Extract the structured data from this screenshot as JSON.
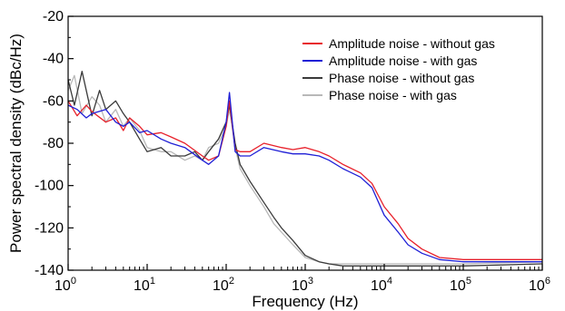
{
  "chart_data": {
    "type": "line",
    "xlabel": "Frequency (Hz)",
    "ylabel": "Power spectral density (dBc/Hz)",
    "x_scale": "log",
    "xlim": [
      1,
      1000000
    ],
    "ylim": [
      -140,
      -20
    ],
    "grid": false,
    "legend_position": "top-right",
    "x_ticks": [
      {
        "value": 1,
        "base": "10",
        "exp": "0"
      },
      {
        "value": 10,
        "base": "10",
        "exp": "1"
      },
      {
        "value": 100,
        "base": "10",
        "exp": "2"
      },
      {
        "value": 1000,
        "base": "10",
        "exp": "3"
      },
      {
        "value": 10000,
        "base": "10",
        "exp": "4"
      },
      {
        "value": 100000,
        "base": "10",
        "exp": "5"
      },
      {
        "value": 1000000,
        "base": "10",
        "exp": "6"
      }
    ],
    "y_ticks": [
      {
        "value": -20,
        "label": "-20"
      },
      {
        "value": -40,
        "label": "-40"
      },
      {
        "value": -60,
        "label": "-60"
      },
      {
        "value": -80,
        "label": "-80"
      },
      {
        "value": -100,
        "label": "-100"
      },
      {
        "value": -120,
        "label": "-120"
      },
      {
        "value": -140,
        "label": "-140"
      }
    ],
    "series": [
      {
        "name": "Amplitude noise - without gas",
        "color": "#e8202a",
        "x": [
          1,
          1.3,
          1.7,
          2,
          3,
          4,
          5,
          6,
          8,
          10,
          15,
          20,
          30,
          50,
          60,
          80,
          100,
          110,
          130,
          150,
          200,
          300,
          500,
          700,
          1000,
          1500,
          2000,
          3000,
          5000,
          7000,
          10000,
          15000,
          20000,
          30000,
          50000,
          100000,
          300000,
          1000000
        ],
        "y": [
          -60,
          -67,
          -62,
          -65,
          -70,
          -68,
          -74,
          -68,
          -72,
          -76,
          -75,
          -77,
          -80,
          -86,
          -88,
          -86,
          -72,
          -60,
          -83,
          -84,
          -84,
          -80,
          -82,
          -83,
          -82,
          -84,
          -86,
          -90,
          -94,
          -99,
          -110,
          -118,
          -125,
          -130,
          -134,
          -135,
          -135,
          -135
        ]
      },
      {
        "name": "Amplitude noise - with gas",
        "color": "#1f1fd6",
        "x": [
          1,
          1.3,
          1.7,
          2,
          3,
          4,
          5,
          6,
          8,
          10,
          15,
          20,
          30,
          50,
          60,
          80,
          100,
          110,
          130,
          150,
          200,
          300,
          500,
          700,
          1000,
          1500,
          2000,
          3000,
          5000,
          7000,
          10000,
          15000,
          20000,
          30000,
          50000,
          100000,
          300000,
          1000000
        ],
        "y": [
          -62,
          -64,
          -68,
          -66,
          -64,
          -70,
          -72,
          -70,
          -75,
          -74,
          -78,
          -80,
          -82,
          -88,
          -90,
          -86,
          -70,
          -56,
          -84,
          -86,
          -86,
          -82,
          -84,
          -85,
          -85,
          -86,
          -88,
          -92,
          -96,
          -101,
          -114,
          -122,
          -128,
          -132,
          -135,
          -136,
          -136,
          -136
        ]
      },
      {
        "name": "Phase noise - without gas",
        "color": "#3a3a3a",
        "x": [
          1,
          1.2,
          1.5,
          2,
          2.5,
          3,
          4,
          5,
          6,
          8,
          10,
          15,
          20,
          30,
          40,
          50,
          60,
          80,
          100,
          110,
          130,
          150,
          200,
          300,
          400,
          500,
          700,
          1000,
          1500,
          2000,
          3000,
          5000,
          10000,
          100000,
          1000000
        ],
        "y": [
          -50,
          -62,
          -46,
          -67,
          -55,
          -64,
          -60,
          -66,
          -70,
          -78,
          -84,
          -82,
          -86,
          -86,
          -84,
          -88,
          -84,
          -78,
          -70,
          -62,
          -80,
          -90,
          -98,
          -108,
          -115,
          -120,
          -126,
          -133,
          -136,
          -137,
          -138,
          -138,
          -138,
          -138,
          -137
        ]
      },
      {
        "name": "Phase noise - with gas",
        "color": "#b8b8b8",
        "x": [
          1,
          1.2,
          1.5,
          2,
          2.5,
          3,
          4,
          5,
          6,
          8,
          10,
          15,
          20,
          30,
          40,
          50,
          60,
          80,
          100,
          110,
          130,
          150,
          200,
          300,
          400,
          500,
          700,
          1000,
          1500,
          2000,
          3000,
          5000,
          10000,
          100000,
          1000000
        ],
        "y": [
          -55,
          -48,
          -66,
          -58,
          -62,
          -70,
          -64,
          -72,
          -68,
          -74,
          -82,
          -84,
          -84,
          -88,
          -86,
          -88,
          -82,
          -80,
          -72,
          -64,
          -82,
          -92,
          -100,
          -110,
          -118,
          -122,
          -128,
          -134,
          -136,
          -137,
          -137,
          -137,
          -137,
          -137,
          -136
        ]
      }
    ]
  }
}
